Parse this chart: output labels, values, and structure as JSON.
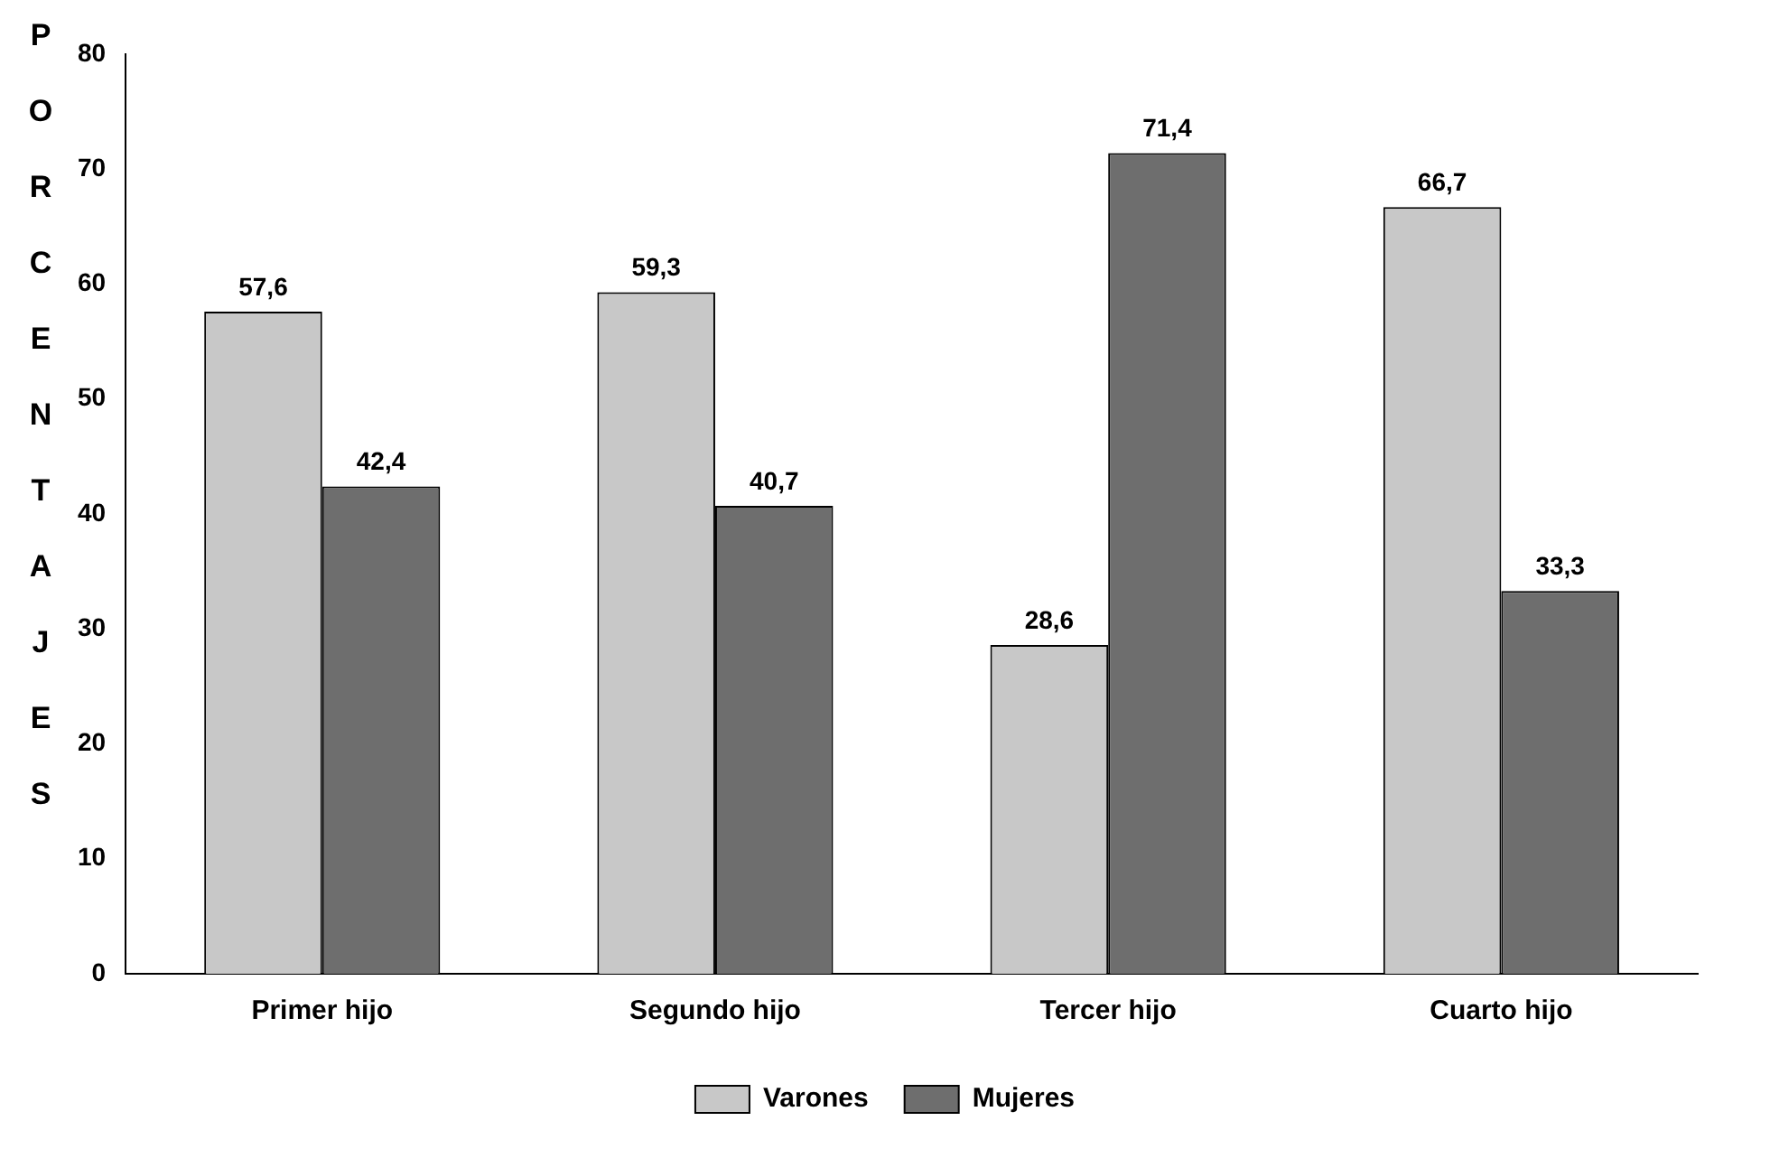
{
  "chart_data": {
    "type": "bar",
    "ylabel": "PORCENTAJES",
    "categories": [
      "Primer hijo",
      "Segundo hijo",
      "Tercer hijo",
      "Cuarto hijo"
    ],
    "series": [
      {
        "name": "Varones",
        "color": "#c8c8c8",
        "values": [
          57.6,
          59.3,
          28.6,
          66.7
        ],
        "value_labels": [
          "57,6",
          "59,3",
          "28,6",
          "66,7"
        ]
      },
      {
        "name": "Mujeres",
        "color": "#6e6e6e",
        "values": [
          42.4,
          40.7,
          71.4,
          33.3
        ],
        "value_labels": [
          "42,4",
          "40,7",
          "71,4",
          "33,3"
        ]
      }
    ],
    "ylim": [
      0,
      80
    ],
    "yticks": [
      0,
      10,
      20,
      30,
      40,
      50,
      60,
      70,
      80
    ],
    "grid": false,
    "legend": "bottom"
  }
}
